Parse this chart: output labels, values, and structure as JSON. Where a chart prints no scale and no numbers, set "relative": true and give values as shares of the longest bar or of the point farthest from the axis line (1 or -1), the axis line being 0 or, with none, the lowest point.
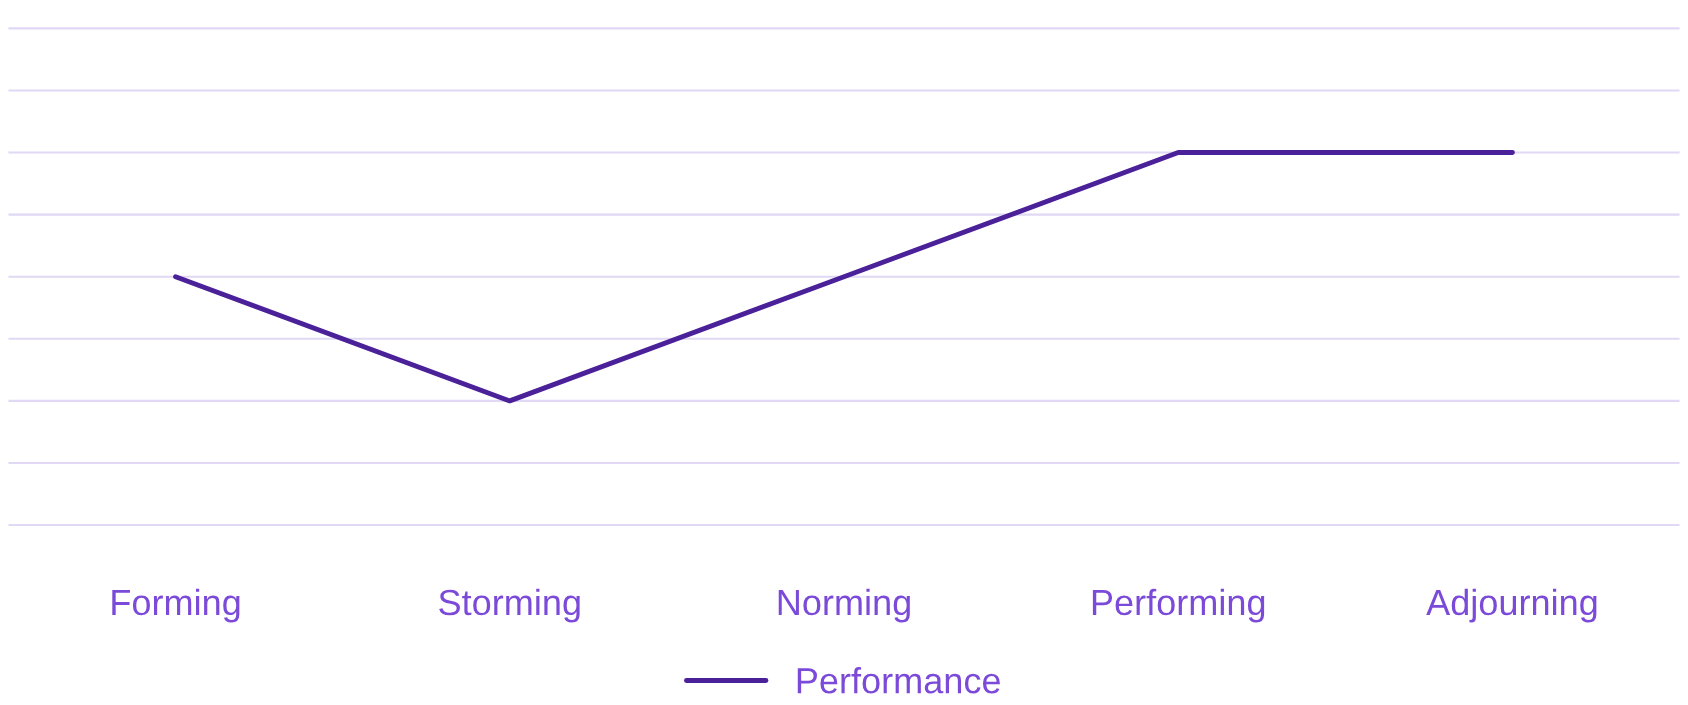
{
  "chart_data": {
    "type": "line",
    "relative": true,
    "categories": [
      "Forming",
      "Storming",
      "Norming",
      "Performing",
      "Adjourning"
    ],
    "series": [
      {
        "name": "Performance",
        "color": "#4b2199",
        "values": [
          0.5,
          0,
          0.5,
          1,
          1
        ]
      }
    ],
    "grid": "y",
    "legend": "bottom",
    "marker": "none",
    "line_style": "solid"
  }
}
